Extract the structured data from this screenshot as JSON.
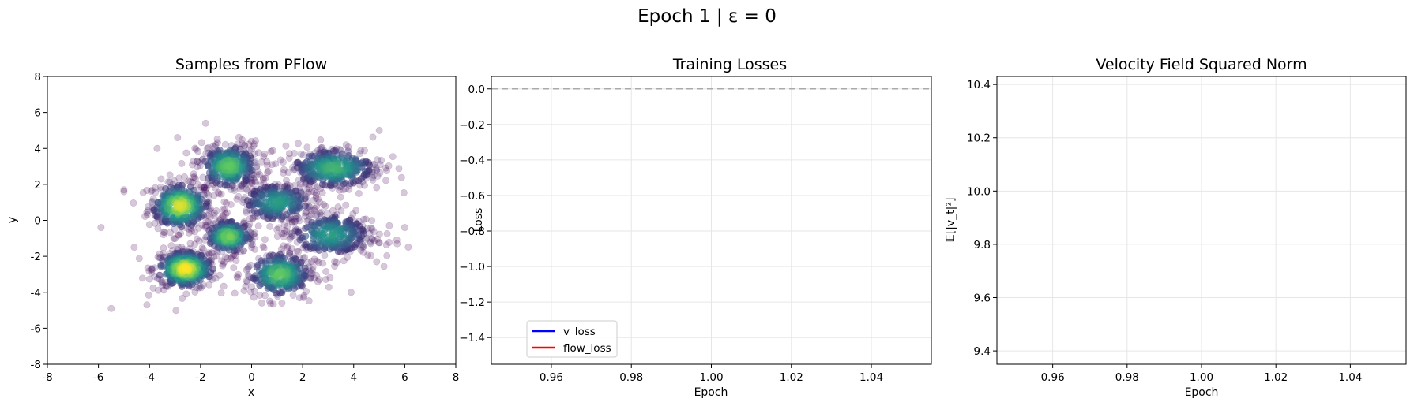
{
  "figure": {
    "suptitle": "Epoch 1 | ε = 0"
  },
  "chart_data": [
    {
      "type": "scatter",
      "title": "Samples from PFlow",
      "xlabel": "x",
      "ylabel": "y",
      "xlim": [
        -8,
        8
      ],
      "ylim": [
        -8,
        8
      ],
      "xticks": [
        -8,
        -6,
        -4,
        -2,
        0,
        2,
        4,
        6,
        8
      ],
      "yticks": [
        -8,
        -6,
        -4,
        -2,
        0,
        2,
        4,
        6,
        8
      ],
      "grid": false,
      "point_color_low": "#440154",
      "point_color_high": "#fde725",
      "colormap": "viridis (density)",
      "clusters": [
        {
          "cx": -2.8,
          "cy": 0.8,
          "sx": 0.55,
          "sy": 0.6,
          "n": 320,
          "peak": 0.95
        },
        {
          "cx": -2.6,
          "cy": -2.7,
          "sx": 0.55,
          "sy": 0.5,
          "n": 360,
          "peak": 1.0
        },
        {
          "cx": -0.9,
          "cy": 3.0,
          "sx": 0.55,
          "sy": 0.6,
          "n": 300,
          "peak": 0.75
        },
        {
          "cx": -0.9,
          "cy": -0.9,
          "sx": 0.45,
          "sy": 0.45,
          "n": 220,
          "peak": 0.8
        },
        {
          "cx": 1.0,
          "cy": 1.0,
          "sx": 0.7,
          "sy": 0.55,
          "n": 260,
          "peak": 0.55
        },
        {
          "cx": 1.1,
          "cy": -3.0,
          "sx": 0.6,
          "sy": 0.6,
          "n": 280,
          "peak": 0.75
        },
        {
          "cx": 3.2,
          "cy": 2.9,
          "sx": 0.85,
          "sy": 0.55,
          "n": 330,
          "peak": 0.65
        },
        {
          "cx": 3.1,
          "cy": -0.8,
          "sx": 0.8,
          "sy": 0.6,
          "n": 300,
          "peak": 0.55
        }
      ],
      "outliers": [
        {
          "x": -5.9,
          "y": -0.4
        },
        {
          "x": -5.5,
          "y": -4.9
        },
        {
          "x": -4.1,
          "y": -4.7
        },
        {
          "x": -3.7,
          "y": 4.0
        },
        {
          "x": -5.0,
          "y": 1.7
        },
        {
          "x": -1.8,
          "y": 5.4
        },
        {
          "x": 6.0,
          "y": -0.4
        },
        {
          "x": 5.7,
          "y": -1.3
        },
        {
          "x": 5.0,
          "y": 5.0
        },
        {
          "x": 3.9,
          "y": -4.0
        },
        {
          "x": -2.9,
          "y": 4.6
        },
        {
          "x": 4.9,
          "y": -2.3
        },
        {
          "x": -4.6,
          "y": -1.5
        },
        {
          "x": 0.4,
          "y": -4.6
        }
      ]
    },
    {
      "type": "line",
      "title": "Training Losses",
      "xlabel": "Epoch",
      "ylabel": "Loss",
      "xlim": [
        0.945,
        1.055
      ],
      "ylim": [
        -1.55,
        0.07
      ],
      "xticks": [
        0.96,
        0.98,
        1.0,
        1.02,
        1.04
      ],
      "xtick_labels": [
        "0.96",
        "0.98",
        "1.00",
        "1.02",
        "1.04"
      ],
      "yticks": [
        0.0,
        -0.2,
        -0.4,
        -0.6,
        -0.8,
        -1.0,
        -1.2,
        -1.4
      ],
      "ytick_labels": [
        "0.0",
        "−0.2",
        "−0.4",
        "−0.6",
        "−0.8",
        "−1.0",
        "−1.2",
        "−1.4"
      ],
      "grid": true,
      "reference_line": {
        "y": 0.0,
        "style": "dashed",
        "color": "#aaaaaa"
      },
      "legend_position": "lower-left",
      "series": [
        {
          "name": "v_loss",
          "color": "#0000ff",
          "x": [],
          "y": []
        },
        {
          "name": "flow_loss",
          "color": "#ff0000",
          "x": [],
          "y": []
        }
      ]
    },
    {
      "type": "line",
      "title": "Velocity Field Squared Norm",
      "xlabel": "Epoch",
      "ylabel": "𝔼[|v_t|²]",
      "xlim": [
        0.945,
        1.055
      ],
      "ylim": [
        9.35,
        10.43
      ],
      "xticks": [
        0.96,
        0.98,
        1.0,
        1.02,
        1.04
      ],
      "xtick_labels": [
        "0.96",
        "0.98",
        "1.00",
        "1.02",
        "1.04"
      ],
      "yticks": [
        9.4,
        9.6,
        9.8,
        10.0,
        10.2,
        10.4
      ],
      "ytick_labels": [
        "9.4",
        "9.6",
        "9.8",
        "10.0",
        "10.2",
        "10.4"
      ],
      "grid": true,
      "series": []
    }
  ]
}
